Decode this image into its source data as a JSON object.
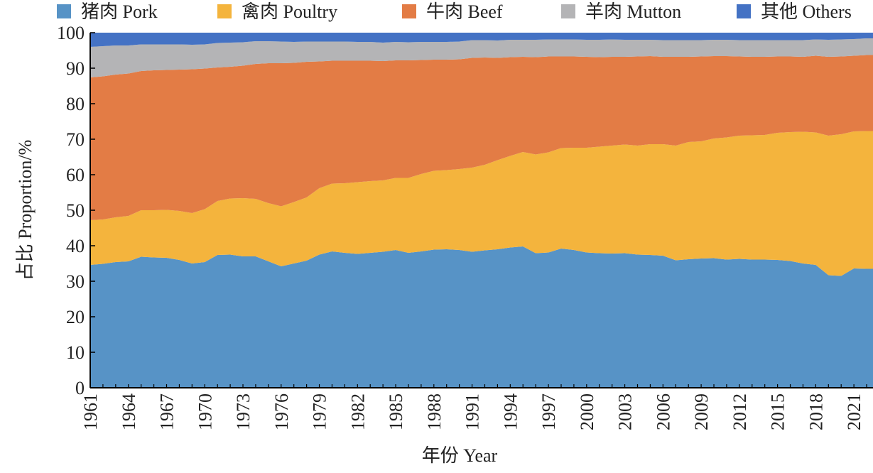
{
  "chart_data": {
    "type": "area",
    "stacked": true,
    "xlabel": "年份 Year",
    "ylabel": "占比 Proportion/%",
    "ylim": [
      0,
      100
    ],
    "yticks": [
      0,
      10,
      20,
      30,
      40,
      50,
      60,
      70,
      80,
      90,
      100
    ],
    "xtick_labels": [
      "1961",
      "1964",
      "1967",
      "1970",
      "1973",
      "1976",
      "1979",
      "1982",
      "1985",
      "1988",
      "1991",
      "1994",
      "1997",
      "2000",
      "2003",
      "2006",
      "2009",
      "2012",
      "2015",
      "2018",
      "2021"
    ],
    "x": [
      1961,
      1962,
      1963,
      1964,
      1965,
      1966,
      1967,
      1968,
      1969,
      1970,
      1971,
      1972,
      1973,
      1974,
      1975,
      1976,
      1977,
      1978,
      1979,
      1980,
      1981,
      1982,
      1983,
      1984,
      1985,
      1986,
      1987,
      1988,
      1989,
      1990,
      1991,
      1992,
      1993,
      1994,
      1995,
      1996,
      1997,
      1998,
      1999,
      2000,
      2001,
      2002,
      2003,
      2004,
      2005,
      2006,
      2007,
      2008,
      2009,
      2010,
      2011,
      2012,
      2013,
      2014,
      2015,
      2016,
      2017,
      2018,
      2019,
      2020,
      2021,
      2022
    ],
    "legend_position": "top",
    "grid": false,
    "series": [
      {
        "name": "猪肉 Pork",
        "color": "#5793C6",
        "values": [
          34.6,
          34.9,
          35.4,
          35.6,
          36.9,
          36.7,
          36.6,
          36.0,
          35.0,
          35.4,
          37.4,
          37.5,
          37.0,
          37.0,
          35.6,
          34.2,
          35.0,
          35.8,
          37.5,
          38.4,
          38.0,
          37.7,
          38.0,
          38.3,
          38.8,
          38.0,
          38.4,
          38.9,
          39.0,
          38.8,
          38.3,
          38.7,
          39.0,
          39.5,
          39.8,
          37.9,
          38.1,
          39.2,
          38.8,
          38.1,
          37.9,
          37.8,
          37.9,
          37.5,
          37.4,
          37.2,
          35.9,
          36.2,
          36.4,
          36.5,
          36.1,
          36.3,
          36.1,
          36.1,
          36.0,
          35.7,
          35.0,
          34.6,
          31.7,
          31.5,
          33.6,
          33.5
        ]
      },
      {
        "name": "禽肉 Poultry",
        "color": "#F4B43D",
        "values": [
          12.6,
          12.5,
          12.6,
          12.8,
          13.1,
          13.3,
          13.5,
          13.8,
          14.2,
          14.9,
          15.2,
          15.8,
          16.4,
          16.2,
          16.4,
          16.9,
          17.3,
          17.8,
          18.7,
          19.1,
          19.6,
          20.2,
          20.2,
          20.1,
          20.3,
          21.1,
          21.8,
          22.2,
          22.3,
          22.8,
          23.7,
          24.1,
          25.1,
          25.8,
          26.6,
          27.8,
          28.2,
          28.3,
          28.8,
          29.5,
          30.0,
          30.4,
          30.6,
          30.7,
          31.2,
          31.4,
          32.3,
          33.0,
          33.0,
          33.7,
          34.4,
          34.7,
          35.0,
          35.1,
          35.8,
          36.3,
          37.1,
          37.3,
          39.3,
          39.9,
          38.6,
          38.8
        ]
      },
      {
        "name": "牛肉 Beef",
        "color": "#E37C45",
        "values": [
          40.2,
          40.3,
          40.2,
          40.1,
          39.2,
          39.4,
          39.4,
          39.8,
          40.5,
          39.6,
          37.6,
          37.1,
          37.3,
          38.0,
          39.4,
          40.3,
          39.2,
          38.2,
          35.7,
          34.6,
          34.5,
          34.2,
          33.9,
          33.6,
          33.1,
          33.1,
          32.1,
          31.3,
          31.1,
          30.9,
          30.9,
          30.2,
          28.8,
          27.8,
          26.8,
          27.4,
          27.0,
          25.8,
          25.7,
          25.6,
          25.2,
          25.0,
          24.7,
          25.1,
          24.8,
          24.6,
          25.0,
          24.0,
          23.9,
          23.2,
          22.9,
          22.3,
          22.1,
          22.0,
          21.5,
          21.3,
          21.1,
          21.6,
          22.2,
          21.9,
          21.3,
          21.4
        ]
      },
      {
        "name": "羊肉 Mutton",
        "color": "#B4B4B6",
        "values": [
          8.6,
          8.5,
          8.2,
          7.9,
          7.5,
          7.3,
          7.2,
          7.1,
          6.9,
          6.8,
          6.9,
          6.8,
          6.6,
          6.4,
          6.2,
          6.1,
          5.9,
          5.7,
          5.6,
          5.4,
          5.4,
          5.3,
          5.3,
          5.2,
          5.2,
          5.1,
          5.1,
          5.0,
          5.0,
          5.0,
          5.0,
          4.9,
          4.9,
          4.9,
          4.8,
          4.9,
          4.8,
          4.8,
          4.8,
          4.8,
          4.9,
          4.9,
          4.8,
          4.7,
          4.6,
          4.7,
          4.7,
          4.7,
          4.6,
          4.6,
          4.6,
          4.6,
          4.7,
          4.7,
          4.6,
          4.6,
          4.7,
          4.6,
          4.8,
          4.8,
          4.7,
          4.7
        ]
      },
      {
        "name": "其他 Others",
        "color": "#4472C4",
        "values": [
          4.0,
          3.8,
          3.6,
          3.6,
          3.3,
          3.3,
          3.3,
          3.3,
          3.4,
          3.3,
          2.9,
          2.8,
          2.7,
          2.4,
          2.4,
          2.5,
          2.6,
          2.5,
          2.5,
          2.5,
          2.5,
          2.6,
          2.6,
          2.8,
          2.6,
          2.7,
          2.6,
          2.6,
          2.6,
          2.5,
          2.1,
          2.1,
          2.2,
          2.0,
          2.0,
          2.0,
          1.9,
          1.9,
          1.9,
          2.0,
          2.0,
          1.9,
          2.0,
          2.0,
          2.0,
          2.1,
          2.1,
          2.1,
          2.1,
          2.0,
          2.0,
          2.1,
          2.1,
          2.1,
          2.1,
          2.1,
          2.1,
          1.9,
          2.0,
          1.9,
          1.8,
          1.6
        ]
      }
    ]
  }
}
